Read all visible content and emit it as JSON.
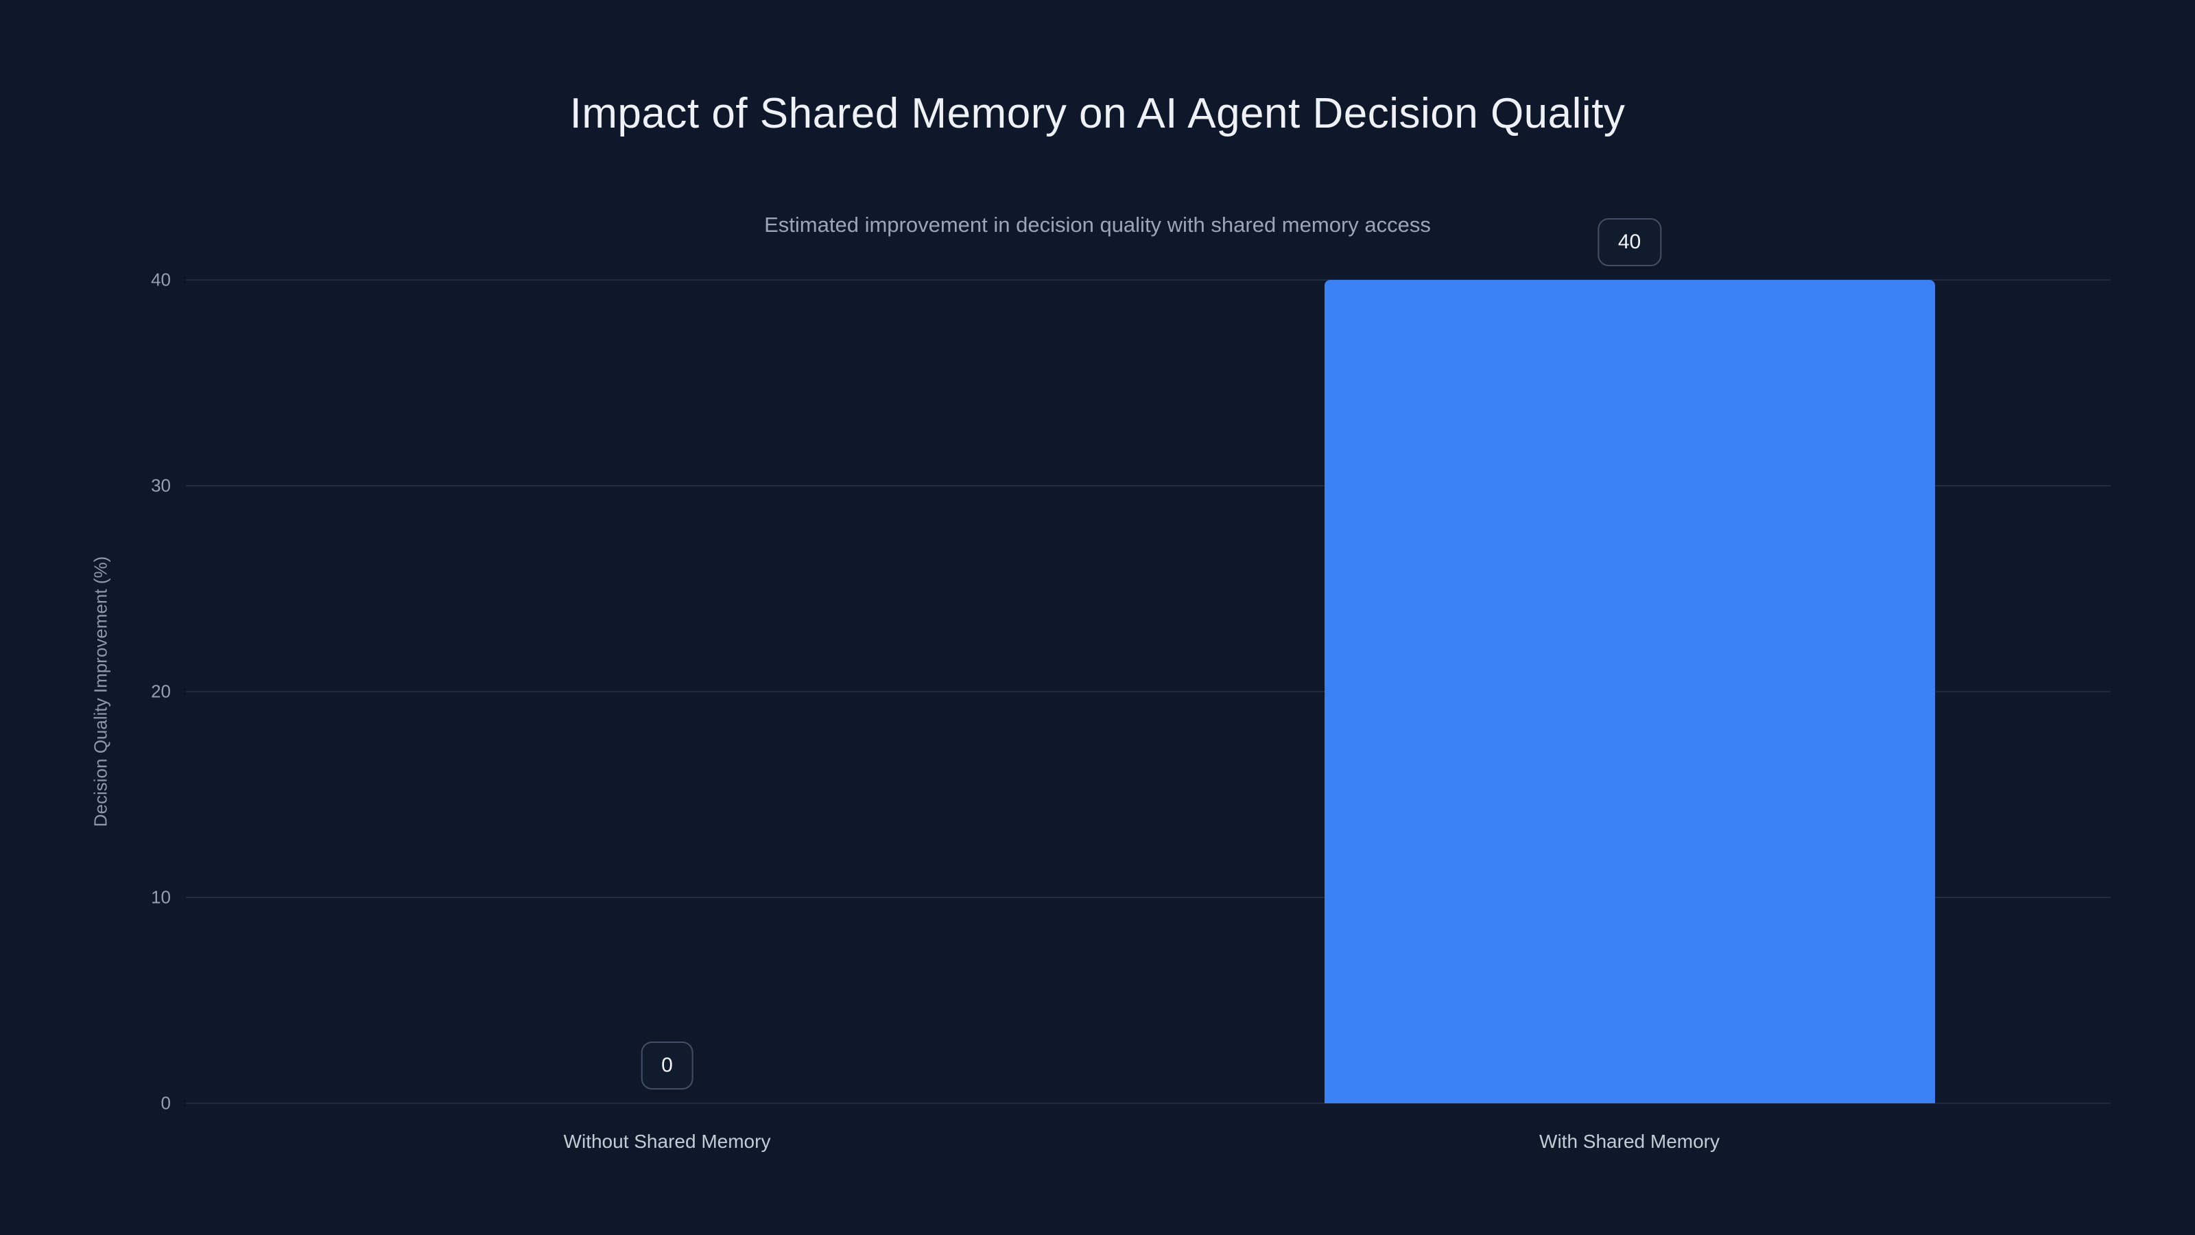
{
  "chart_data": {
    "type": "bar",
    "title": "Impact of Shared Memory on AI Agent Decision Quality",
    "subtitle": "Estimated improvement in decision quality with shared memory access",
    "categories": [
      "Without Shared Memory",
      "With Shared Memory"
    ],
    "values": [
      0,
      40
    ],
    "value_labels": [
      "0",
      "40"
    ],
    "xlabel": "",
    "ylabel": "Decision Quality Improvement (%)",
    "ylim": [
      0,
      40
    ],
    "yticks": [
      0,
      10,
      20,
      30,
      40
    ],
    "grid": true,
    "legend": false,
    "legend_position": "none",
    "bar_color": "#3b82f6",
    "background_color": "#0f172a",
    "gridline_color": "rgba(148,163,184,0.14)",
    "title_color": "#eef2f7",
    "subtitle_color": "#9aa6b8",
    "tick_color": "#95a0b1"
  }
}
